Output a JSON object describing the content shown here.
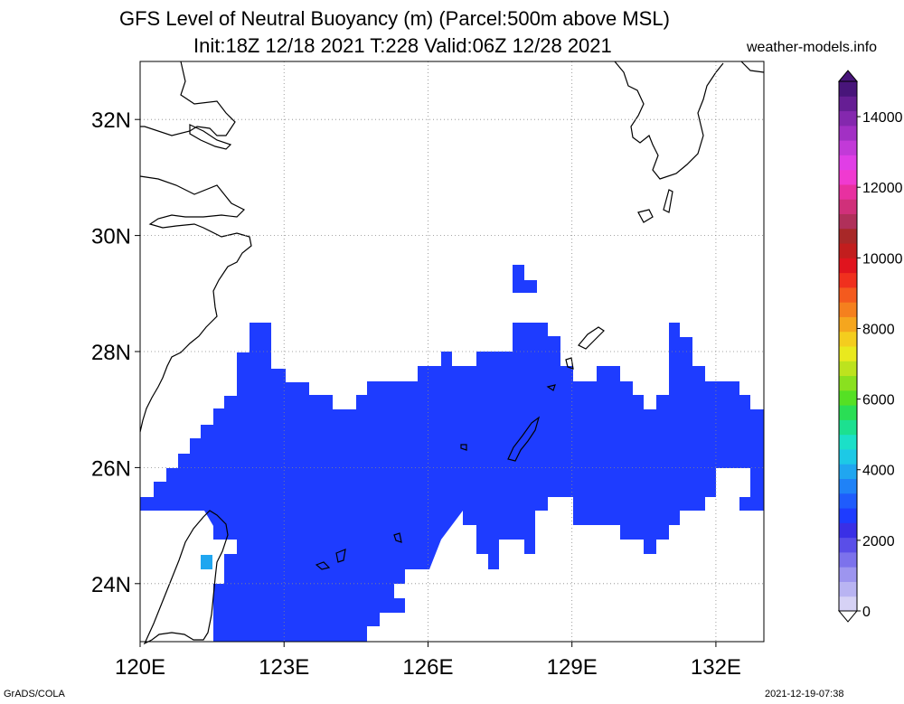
{
  "title_line1": "GFS Level of Neutral Buoyancy (m) (Parcel:500m above MSL)",
  "title_line2": "Init:18Z 12/18 2021 T:228 Valid:06Z 12/28 2021",
  "credit": "weather-models.info",
  "footer_left": "GrADS/COLA",
  "footer_right": "2021-12-19-07:38",
  "map": {
    "lon_labels": [
      "120E",
      "123E",
      "126E",
      "129E",
      "132E"
    ],
    "lat_labels": [
      "24N",
      "26N",
      "28N",
      "30N",
      "32N"
    ],
    "lon_values": [
      120,
      123,
      126,
      129,
      132
    ],
    "lat_values": [
      24,
      26,
      28,
      30,
      32
    ],
    "lon_range": [
      120,
      133
    ],
    "lat_range": [
      23,
      33
    ],
    "grid": "dotted",
    "fill_color": "#1e3cff"
  },
  "colorbar": {
    "labels": [
      "0",
      "2000",
      "4000",
      "6000",
      "8000",
      "10000",
      "12000",
      "14000"
    ],
    "range": [
      0,
      15000
    ],
    "colors": [
      "#d6d2f5",
      "#b9b4f2",
      "#9d95ef",
      "#7c72ec",
      "#5a4ee8",
      "#3a2fe6",
      "#1e3cff",
      "#1f5cfc",
      "#1f82f7",
      "#20a6f0",
      "#1dc9e6",
      "#1be0c8",
      "#1ce090",
      "#2ade55",
      "#55e024",
      "#8ae01f",
      "#bde31e",
      "#e9e91e",
      "#f4cd1e",
      "#f5a61e",
      "#f5801e",
      "#f45a1e",
      "#f0301e",
      "#e0141e",
      "#c21e1e",
      "#a82828",
      "#b0305a",
      "#d0307a",
      "#e830a0",
      "#f03ad0",
      "#e03ee6",
      "#c23ad8",
      "#a230c4",
      "#8428ae",
      "#661e94",
      "#48157a"
    ]
  }
}
